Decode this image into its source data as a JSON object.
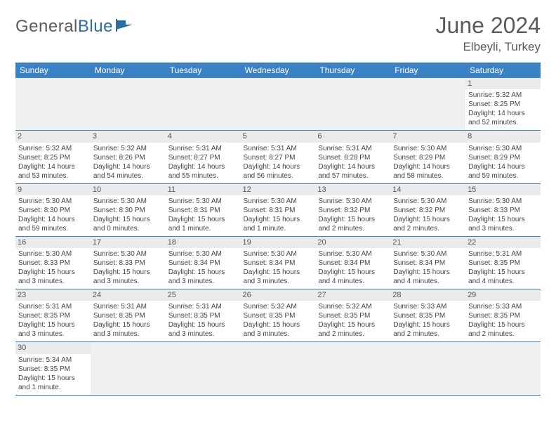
{
  "logo": {
    "text1": "General",
    "text2": "Blue"
  },
  "title": "June 2024",
  "location": "Elbeyli, Turkey",
  "colors": {
    "header_bg": "#3b82c4",
    "header_text": "#ffffff",
    "daynum_bg": "#ebebeb",
    "border": "#3b82c4",
    "text": "#444444",
    "title": "#5a5a5a"
  },
  "weekdays": [
    "Sunday",
    "Monday",
    "Tuesday",
    "Wednesday",
    "Thursday",
    "Friday",
    "Saturday"
  ],
  "weeks": [
    [
      null,
      null,
      null,
      null,
      null,
      null,
      {
        "n": "1",
        "sr": "5:32 AM",
        "ss": "8:25 PM",
        "dl": "14 hours and 52 minutes."
      }
    ],
    [
      {
        "n": "2",
        "sr": "5:32 AM",
        "ss": "8:25 PM",
        "dl": "14 hours and 53 minutes."
      },
      {
        "n": "3",
        "sr": "5:32 AM",
        "ss": "8:26 PM",
        "dl": "14 hours and 54 minutes."
      },
      {
        "n": "4",
        "sr": "5:31 AM",
        "ss": "8:27 PM",
        "dl": "14 hours and 55 minutes."
      },
      {
        "n": "5",
        "sr": "5:31 AM",
        "ss": "8:27 PM",
        "dl": "14 hours and 56 minutes."
      },
      {
        "n": "6",
        "sr": "5:31 AM",
        "ss": "8:28 PM",
        "dl": "14 hours and 57 minutes."
      },
      {
        "n": "7",
        "sr": "5:30 AM",
        "ss": "8:29 PM",
        "dl": "14 hours and 58 minutes."
      },
      {
        "n": "8",
        "sr": "5:30 AM",
        "ss": "8:29 PM",
        "dl": "14 hours and 59 minutes."
      }
    ],
    [
      {
        "n": "9",
        "sr": "5:30 AM",
        "ss": "8:30 PM",
        "dl": "14 hours and 59 minutes."
      },
      {
        "n": "10",
        "sr": "5:30 AM",
        "ss": "8:30 PM",
        "dl": "15 hours and 0 minutes."
      },
      {
        "n": "11",
        "sr": "5:30 AM",
        "ss": "8:31 PM",
        "dl": "15 hours and 1 minute."
      },
      {
        "n": "12",
        "sr": "5:30 AM",
        "ss": "8:31 PM",
        "dl": "15 hours and 1 minute."
      },
      {
        "n": "13",
        "sr": "5:30 AM",
        "ss": "8:32 PM",
        "dl": "15 hours and 2 minutes."
      },
      {
        "n": "14",
        "sr": "5:30 AM",
        "ss": "8:32 PM",
        "dl": "15 hours and 2 minutes."
      },
      {
        "n": "15",
        "sr": "5:30 AM",
        "ss": "8:33 PM",
        "dl": "15 hours and 3 minutes."
      }
    ],
    [
      {
        "n": "16",
        "sr": "5:30 AM",
        "ss": "8:33 PM",
        "dl": "15 hours and 3 minutes."
      },
      {
        "n": "17",
        "sr": "5:30 AM",
        "ss": "8:33 PM",
        "dl": "15 hours and 3 minutes."
      },
      {
        "n": "18",
        "sr": "5:30 AM",
        "ss": "8:34 PM",
        "dl": "15 hours and 3 minutes."
      },
      {
        "n": "19",
        "sr": "5:30 AM",
        "ss": "8:34 PM",
        "dl": "15 hours and 3 minutes."
      },
      {
        "n": "20",
        "sr": "5:30 AM",
        "ss": "8:34 PM",
        "dl": "15 hours and 4 minutes."
      },
      {
        "n": "21",
        "sr": "5:30 AM",
        "ss": "8:34 PM",
        "dl": "15 hours and 4 minutes."
      },
      {
        "n": "22",
        "sr": "5:31 AM",
        "ss": "8:35 PM",
        "dl": "15 hours and 4 minutes."
      }
    ],
    [
      {
        "n": "23",
        "sr": "5:31 AM",
        "ss": "8:35 PM",
        "dl": "15 hours and 3 minutes."
      },
      {
        "n": "24",
        "sr": "5:31 AM",
        "ss": "8:35 PM",
        "dl": "15 hours and 3 minutes."
      },
      {
        "n": "25",
        "sr": "5:31 AM",
        "ss": "8:35 PM",
        "dl": "15 hours and 3 minutes."
      },
      {
        "n": "26",
        "sr": "5:32 AM",
        "ss": "8:35 PM",
        "dl": "15 hours and 3 minutes."
      },
      {
        "n": "27",
        "sr": "5:32 AM",
        "ss": "8:35 PM",
        "dl": "15 hours and 2 minutes."
      },
      {
        "n": "28",
        "sr": "5:33 AM",
        "ss": "8:35 PM",
        "dl": "15 hours and 2 minutes."
      },
      {
        "n": "29",
        "sr": "5:33 AM",
        "ss": "8:35 PM",
        "dl": "15 hours and 2 minutes."
      }
    ],
    [
      {
        "n": "30",
        "sr": "5:34 AM",
        "ss": "8:35 PM",
        "dl": "15 hours and 1 minute."
      },
      null,
      null,
      null,
      null,
      null,
      null
    ]
  ],
  "labels": {
    "sunrise": "Sunrise:",
    "sunset": "Sunset:",
    "daylight": "Daylight:"
  }
}
